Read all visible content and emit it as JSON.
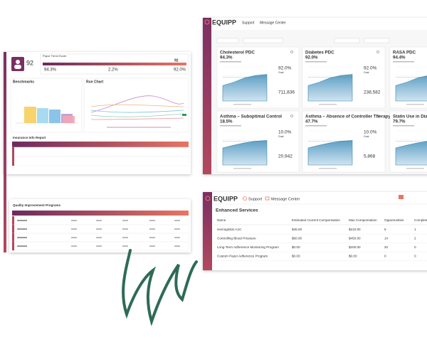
{
  "left_panel": {
    "percentile": "92",
    "trend_title": "Payor Trend Score",
    "trend_value": "92",
    "stats": [
      "94.3%",
      "2.2%",
      "92.0%"
    ],
    "benchmarks_title": "Benchmarks",
    "run_chart_title": "Run Chart",
    "report_title": "Insurance Info Report",
    "programs_title": "Quality Improvement Programs"
  },
  "dashboard": {
    "logo": "EQUIPP",
    "nav": [
      "Support",
      "Message Center"
    ],
    "goal_label": "Goal",
    "cards": [
      {
        "title": "Cholesterol PDC",
        "value": "94.3%",
        "color": "#2e9a5b",
        "goal": "92.0%",
        "count": "711,836"
      },
      {
        "title": "Diabetes PDC",
        "value": "92.0%",
        "color": "#2e9a5b",
        "goal": "92.0%",
        "count": "238,582"
      },
      {
        "title": "RASA PDC",
        "value": "94.4%",
        "color": "#2e9a5b"
      },
      {
        "title": "Asthma – Suboptimal Control",
        "value": "18.5%",
        "color": "#d8343a",
        "goal": "10.0%",
        "count": "20,942"
      },
      {
        "title": "Asthma – Absence of Controller Therapy",
        "value": "47.7%",
        "color": "#d8343a",
        "goal": "10.0%",
        "count": "5,868"
      },
      {
        "title": "Statin Use in Diabetes",
        "value": "79.7%",
        "color": "#d8343a"
      }
    ]
  },
  "services": {
    "logo": "EQUIPP",
    "nav": [
      "Support",
      "Message Center"
    ],
    "title": "Enhanced Services",
    "table": {
      "header": [
        "Name",
        "Estimated Current Compensation",
        "Max Compensation",
        "Opportunities",
        "Completed"
      ],
      "rows": [
        [
          "Hemoglobin A1C",
          "$45.00",
          "$210.00",
          "6",
          "1"
        ],
        [
          "Controlling Blood Pressure",
          "$60.00",
          "$450.00",
          "14",
          "2"
        ],
        [
          "Long-Term Adherence Monitoring Program",
          "$0.00",
          "$200.00",
          "20",
          "0"
        ],
        [
          "Custom Payer Adherence Program",
          "$0.00",
          "$0.00",
          "0",
          "0"
        ]
      ]
    }
  }
}
